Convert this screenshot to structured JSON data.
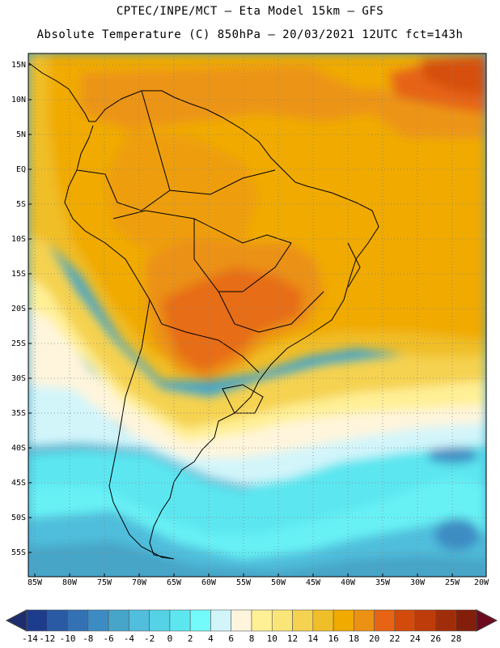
{
  "header": {
    "line1": "CPTEC/INPE/MCT –  Eta Model 15km – GFS",
    "line2": "Absolute Temperature (C) 850hPa – 20/03/2021 12UTC fct=143h"
  },
  "map": {
    "lat_labels": [
      "15N",
      "10N",
      "5N",
      "EQ",
      "5S",
      "10S",
      "15S",
      "20S",
      "25S",
      "30S",
      "35S",
      "40S",
      "45S",
      "50S",
      "55S"
    ],
    "lon_labels": [
      "85W",
      "80W",
      "75W",
      "70W",
      "65W",
      "60W",
      "55W",
      "50W",
      "45W",
      "40W",
      "35W",
      "30W",
      "25W",
      "20W"
    ],
    "lat_range": [
      -58,
      17
    ],
    "lon_range": [
      -86,
      -20
    ]
  },
  "colorbar": {
    "labels": [
      "-14",
      "-12",
      "-10",
      "-8",
      "-6",
      "-4",
      "-2",
      "0",
      "2",
      "4",
      "6",
      "8",
      "10",
      "12",
      "14",
      "16",
      "18",
      "20",
      "22",
      "24",
      "26",
      "28"
    ],
    "colors": [
      "#1e3c8c",
      "#2b5aa5",
      "#3371b4",
      "#3c8cc3",
      "#46a5c8",
      "#50bedc",
      "#55d2e6",
      "#5ce6f0",
      "#73fafa",
      "#d2f5fa",
      "#fff5dc",
      "#fff096",
      "#fae678",
      "#f5d250",
      "#f0be28",
      "#f0aa00",
      "#eb9114",
      "#e66414",
      "#d24b0a",
      "#be3c0a",
      "#a02d0a",
      "#821e0a"
    ],
    "under_color": "#1e2d6e",
    "over_color": "#6e0a1e"
  }
}
